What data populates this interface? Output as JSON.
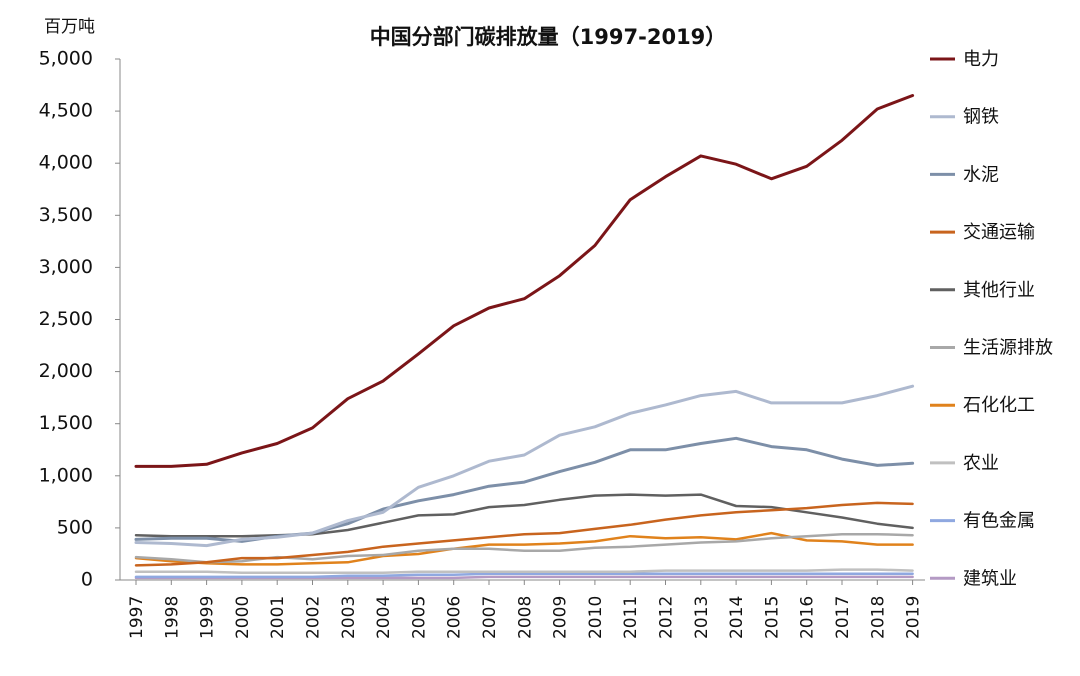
{
  "chart_data": {
    "type": "line",
    "title": "中国分部门碳排放量（1997-2019）",
    "ylabel": "百万吨",
    "xlabel": "",
    "ylim": [
      0,
      5000
    ],
    "yticks": [
      0,
      500,
      1000,
      1500,
      2000,
      2500,
      3000,
      3500,
      4000,
      4500,
      5000
    ],
    "ytick_labels": [
      "0",
      "500",
      "1,000",
      "1,500",
      "2,000",
      "2,500",
      "3,000",
      "3,500",
      "4,000",
      "4,500",
      "5,000"
    ],
    "legend_position": "right",
    "x": [
      "1997",
      "1998",
      "1999",
      "2000",
      "2001",
      "2002",
      "2003",
      "2004",
      "2005",
      "2006",
      "2007",
      "2008",
      "2009",
      "2010",
      "2011",
      "2012",
      "2013",
      "2014",
      "2015",
      "2016",
      "2017",
      "2018",
      "2019"
    ],
    "series": [
      {
        "name": "电力",
        "color": "#7b1518",
        "width": 3,
        "values": [
          1090,
          1090,
          1110,
          1220,
          1310,
          1460,
          1740,
          1910,
          2170,
          2440,
          2610,
          2700,
          2920,
          3210,
          3650,
          3870,
          4070,
          3990,
          3850,
          3970,
          4220,
          4520,
          4650
        ]
      },
      {
        "name": "钢铁",
        "color": "#aeb9cf",
        "width": 3,
        "values": [
          360,
          350,
          330,
          390,
          410,
          450,
          570,
          650,
          890,
          1000,
          1140,
          1200,
          1390,
          1470,
          1600,
          1680,
          1770,
          1810,
          1700,
          1700,
          1700,
          1770,
          1860
        ]
      },
      {
        "name": "水泥",
        "color": "#7d8fa8",
        "width": 3,
        "values": [
          390,
          400,
          400,
          370,
          420,
          450,
          540,
          680,
          760,
          820,
          900,
          940,
          1040,
          1130,
          1250,
          1250,
          1310,
          1360,
          1280,
          1250,
          1160,
          1100,
          1120
        ]
      },
      {
        "name": "交通运输",
        "color": "#c8641e",
        "width": 2.5,
        "values": [
          140,
          150,
          170,
          210,
          210,
          240,
          270,
          320,
          350,
          380,
          410,
          440,
          450,
          490,
          530,
          580,
          620,
          650,
          670,
          690,
          720,
          740,
          730
        ]
      },
      {
        "name": "其他行业",
        "color": "#606060",
        "width": 2.5,
        "values": [
          430,
          420,
          420,
          420,
          430,
          440,
          480,
          550,
          620,
          630,
          700,
          720,
          770,
          810,
          820,
          810,
          820,
          710,
          700,
          650,
          600,
          540,
          500
        ]
      },
      {
        "name": "生活源排放",
        "color": "#a8a8a8",
        "width": 2.5,
        "values": [
          220,
          200,
          170,
          180,
          220,
          200,
          230,
          240,
          280,
          300,
          300,
          280,
          280,
          310,
          320,
          340,
          360,
          370,
          400,
          420,
          440,
          440,
          430
        ]
      },
      {
        "name": "石化化工",
        "color": "#e0821c",
        "width": 2.5,
        "values": [
          210,
          180,
          160,
          150,
          150,
          160,
          170,
          230,
          250,
          300,
          340,
          340,
          350,
          370,
          420,
          400,
          410,
          390,
          450,
          380,
          370,
          340,
          340
        ]
      },
      {
        "name": "农业",
        "color": "#c0c0c0",
        "width": 2.5,
        "values": [
          80,
          80,
          80,
          70,
          70,
          70,
          70,
          70,
          80,
          80,
          80,
          80,
          80,
          80,
          80,
          90,
          90,
          90,
          90,
          90,
          100,
          100,
          90
        ]
      },
      {
        "name": "有色金属",
        "color": "#8fa8e0",
        "width": 2.5,
        "values": [
          30,
          30,
          30,
          30,
          30,
          30,
          40,
          40,
          50,
          50,
          60,
          60,
          60,
          60,
          60,
          60,
          60,
          60,
          60,
          60,
          60,
          60,
          60
        ]
      },
      {
        "name": "建筑业",
        "color": "#b49ac4",
        "width": 2.5,
        "values": [
          20,
          20,
          20,
          20,
          20,
          20,
          20,
          20,
          20,
          20,
          30,
          30,
          30,
          30,
          30,
          30,
          30,
          30,
          30,
          30,
          30,
          30,
          30
        ]
      }
    ]
  }
}
